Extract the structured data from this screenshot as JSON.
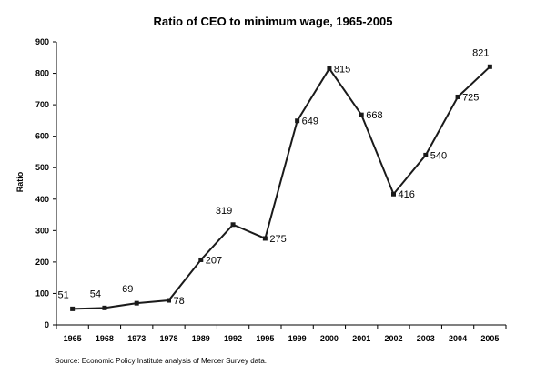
{
  "chart_data": {
    "type": "line",
    "title": "Ratio of CEO to minimum wage, 1965-2005",
    "ylabel": "Ratio",
    "xlabel": "",
    "categories": [
      "1965",
      "1968",
      "1973",
      "1978",
      "1989",
      "1992",
      "1995",
      "1999",
      "2000",
      "2001",
      "2002",
      "2003",
      "2004",
      "2005"
    ],
    "series": [
      {
        "values": [
          51,
          54,
          69,
          78,
          207,
          319,
          275,
          649,
          815,
          668,
          416,
          540,
          725,
          821
        ]
      }
    ],
    "ylim": [
      0,
      900
    ],
    "yticks": [
      0,
      100,
      200,
      300,
      400,
      500,
      600,
      700,
      800,
      900
    ],
    "grid": false,
    "legend": "none",
    "line_color": "#1a1a1a"
  },
  "source": "Source: Economic Policy Institute analysis of Mercer Survey data."
}
